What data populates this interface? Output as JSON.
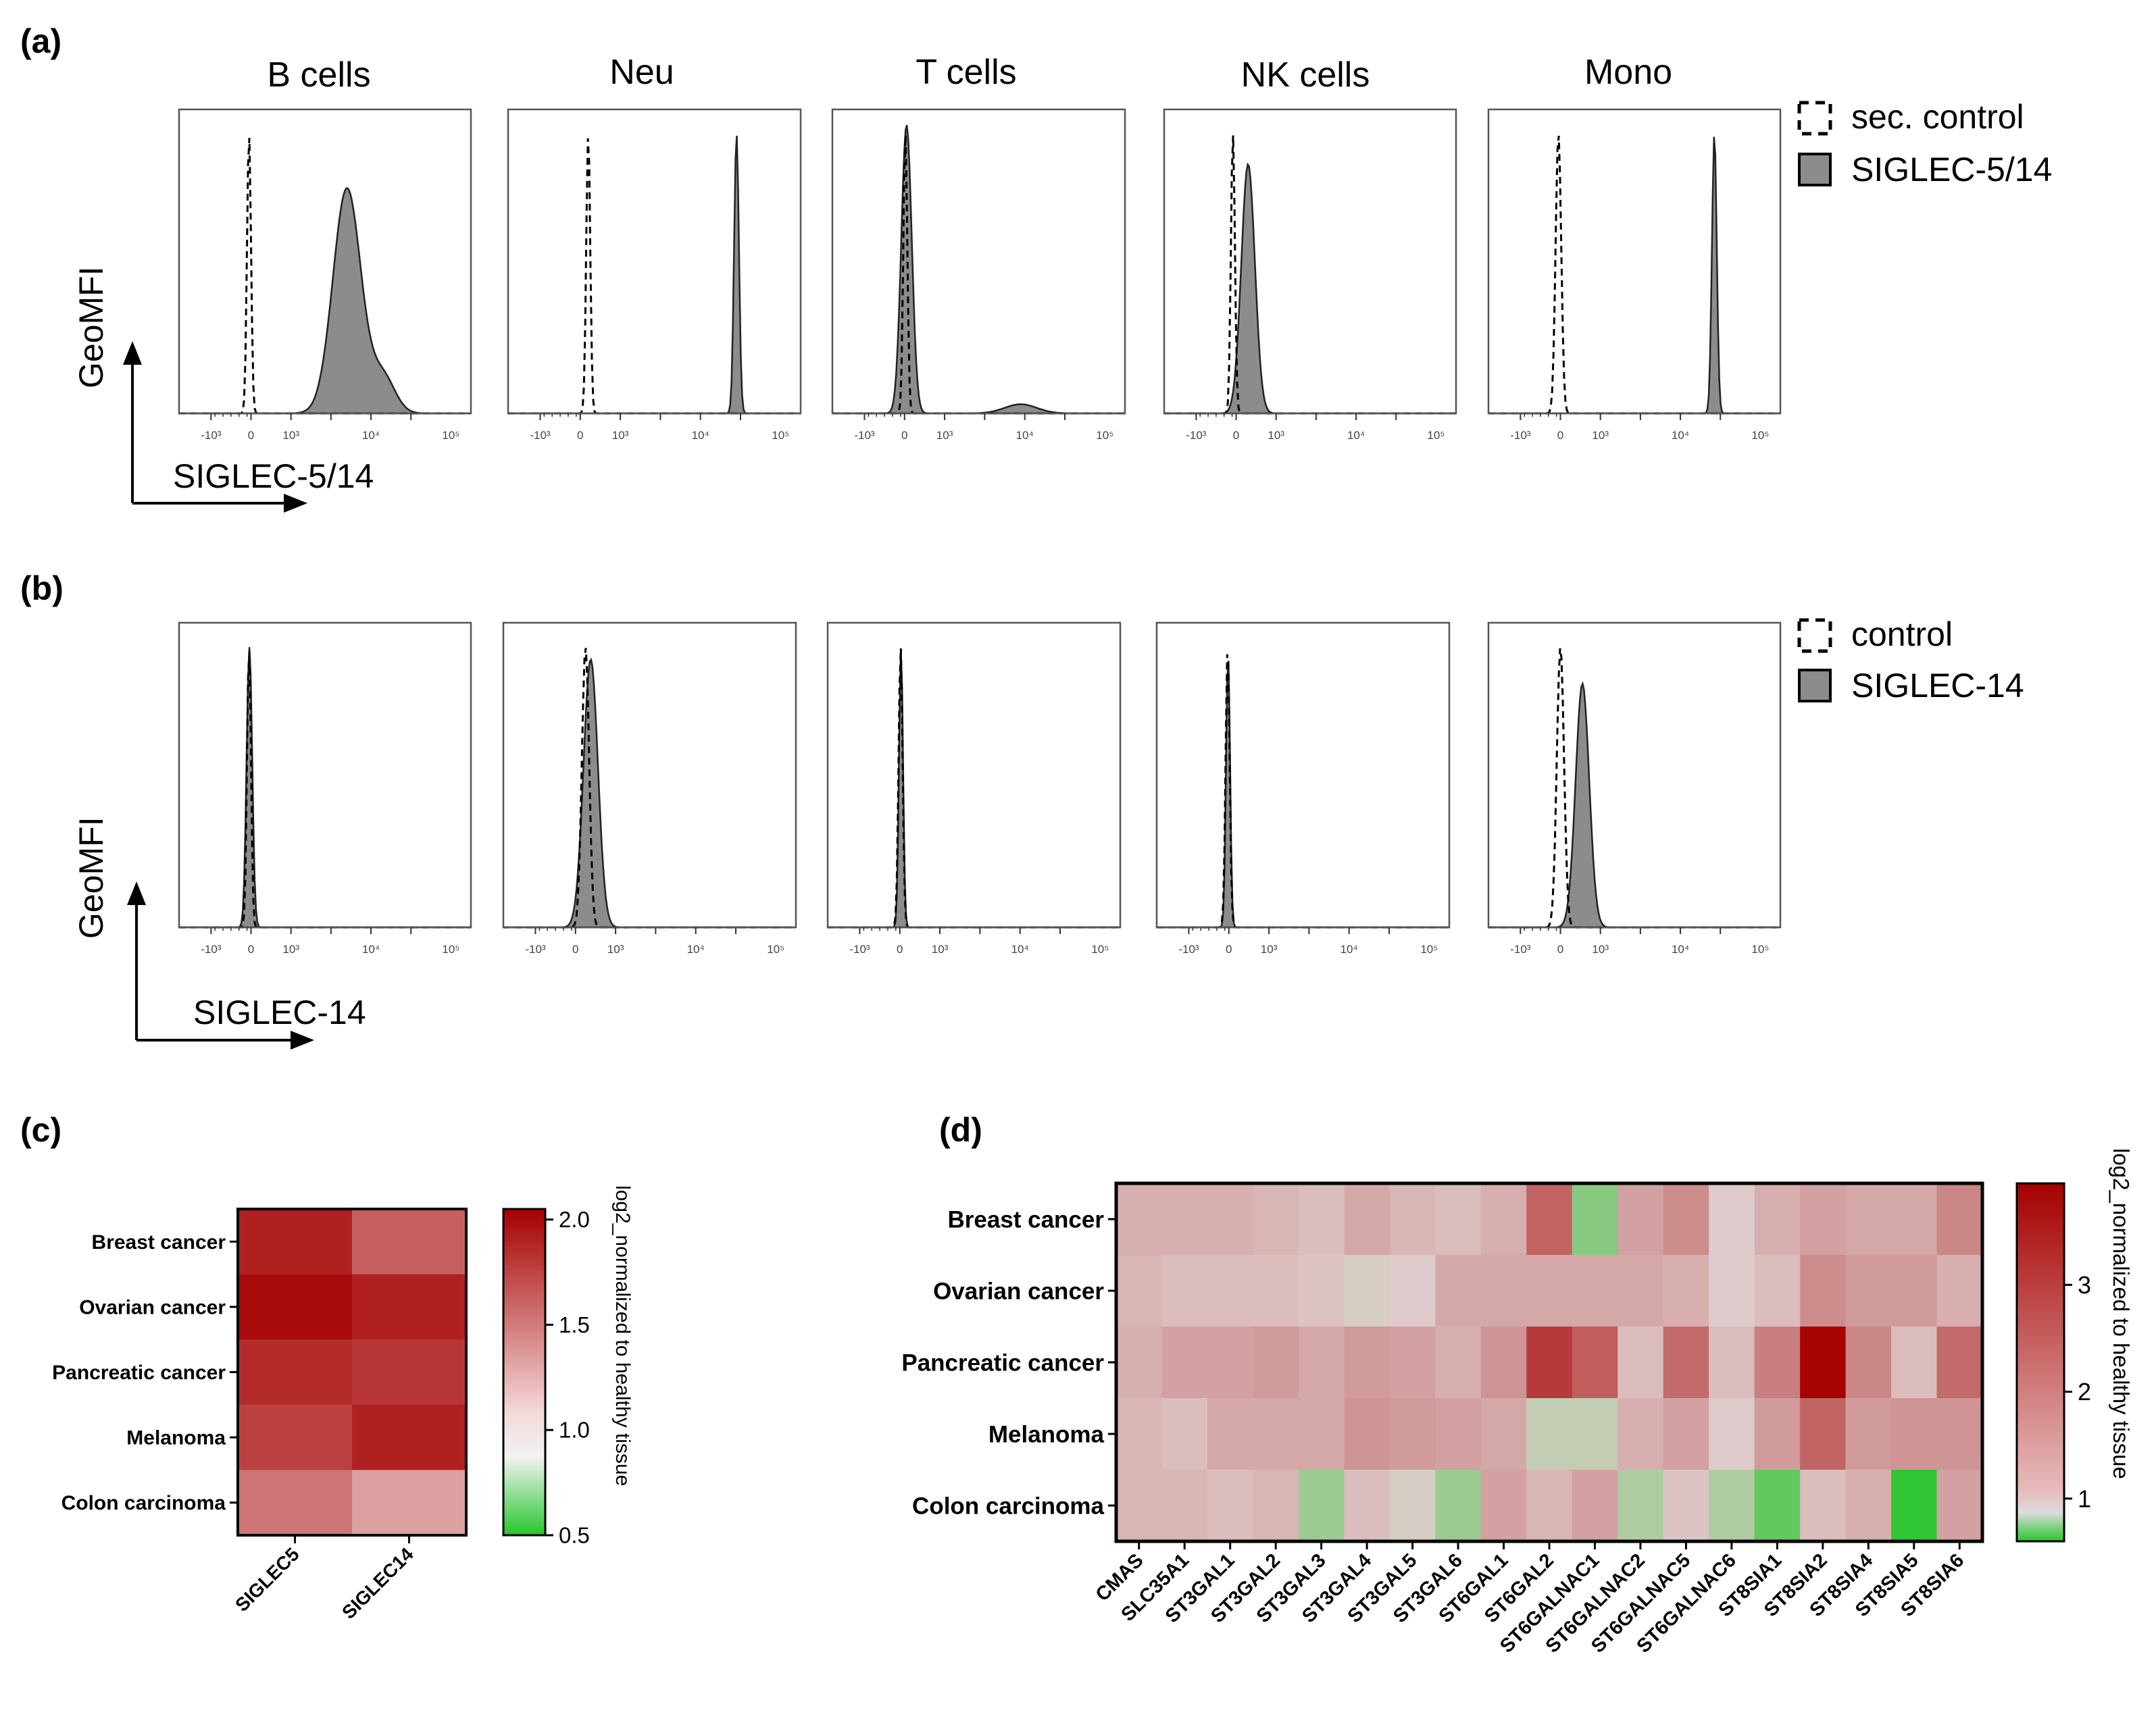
{
  "panels": {
    "a": {
      "letter": "(a)",
      "cells": [
        "B cells",
        "Neu",
        "T cells",
        "NK cells",
        "Mono"
      ],
      "ylabel": "GeoMFI",
      "xlabel": "SIGLEC-5/14",
      "legend": [
        "sec. control",
        "SIGLEC-5/14"
      ]
    },
    "b": {
      "letter": "(b)",
      "ylabel": "GeoMFI",
      "xlabel": "SIGLEC-14",
      "legend": [
        "control",
        "SIGLEC-14"
      ]
    },
    "c": {
      "letter": "(c)"
    },
    "d": {
      "letter": "(d)"
    }
  },
  "chart_data": [
    {
      "type": "histogram",
      "panel": "a",
      "x_scale": "biexponential",
      "xticks": [
        "-10³",
        "0",
        "10³",
        "10⁴",
        "10⁵"
      ],
      "series": [
        {
          "name": "sec. control",
          "style": "dashed",
          "fill": "none"
        },
        {
          "name": "SIGLEC-5/14",
          "style": "solid",
          "fill": "#8c8c8c"
        }
      ],
      "cells": [
        {
          "name": "B cells",
          "control_peak": -0.05,
          "sample": [
            {
              "peak": 2.4,
              "width": 0.35,
              "height": 0.74
            },
            {
              "peak": 3.3,
              "width": 0.3,
              "height": 0.12
            }
          ]
        },
        {
          "name": "Neu",
          "control_peak": 0.2,
          "sample": [
            {
              "peak": 3.9,
              "width": 0.06,
              "height": 0.92
            }
          ]
        },
        {
          "name": "T cells",
          "control_peak": 0.02,
          "sample": [
            {
              "peak": 0.05,
              "width": 0.13,
              "height": 0.95
            },
            {
              "peak": 2.9,
              "width": 0.4,
              "height": 0.03
            }
          ]
        },
        {
          "name": "NK cells",
          "control_peak": -0.08,
          "sample": [
            {
              "peak": 0.3,
              "width": 0.17,
              "height": 0.82
            }
          ]
        },
        {
          "name": "Mono",
          "control_peak": -0.05,
          "sample": [
            {
              "peak": 3.85,
              "width": 0.06,
              "height": 0.92
            }
          ]
        }
      ]
    },
    {
      "type": "histogram",
      "panel": "b",
      "x_scale": "biexponential",
      "xticks": [
        "-10³",
        "0",
        "10³",
        "10⁴",
        "10⁵"
      ],
      "series": [
        {
          "name": "control",
          "style": "dashed",
          "fill": "none"
        },
        {
          "name": "SIGLEC-14",
          "style": "solid",
          "fill": "#8c8c8c"
        }
      ],
      "cells": [
        {
          "name": "B cells",
          "control_peak": -0.05,
          "sample": [
            {
              "peak": -0.04,
              "width": 0.07,
              "height": 0.92
            }
          ]
        },
        {
          "name": "Neu",
          "control_peak": 0.25,
          "sample": [
            {
              "peak": 0.38,
              "width": 0.18,
              "height": 0.88
            }
          ]
        },
        {
          "name": "T cells",
          "control_peak": 0.02,
          "sample": [
            {
              "peak": 0.03,
              "width": 0.05,
              "height": 0.92
            }
          ]
        },
        {
          "name": "NK cells",
          "control_peak": -0.03,
          "sample": [
            {
              "peak": -0.02,
              "width": 0.05,
              "height": 0.9
            }
          ]
        },
        {
          "name": "Mono",
          "control_peak": 0.0,
          "sample": [
            {
              "peak": 0.55,
              "width": 0.17,
              "height": 0.8
            }
          ]
        }
      ]
    },
    {
      "type": "heatmap",
      "panel": "c",
      "rows": [
        "Breast cancer",
        "Ovarian cancer",
        "Pancreatic cancer",
        "Melanoma",
        "Colon carcinoma"
      ],
      "columns": [
        "SIGLEC5",
        "SIGLEC14"
      ],
      "values": [
        [
          1.9,
          1.6
        ],
        [
          2.0,
          1.9
        ],
        [
          1.85,
          1.8
        ],
        [
          1.75,
          1.9
        ],
        [
          1.5,
          1.3
        ]
      ],
      "colorbar": {
        "min": 0.5,
        "max": 2.05,
        "ticks": [
          "2.0",
          "1.5",
          "1.0",
          "0.5"
        ],
        "label": "log2_normalized to healthy tissue"
      }
    },
    {
      "type": "heatmap",
      "panel": "d",
      "rows": [
        "Breast cancer",
        "Ovarian cancer",
        "Pancreatic cancer",
        "Melanoma",
        "Colon carcinoma"
      ],
      "columns": [
        "CMAS",
        "SLC35A1",
        "ST3GAL1",
        "ST3GAL2",
        "ST3GAL3",
        "ST3GAL4",
        "ST3GAL5",
        "ST3GAL6",
        "ST6GAL1",
        "ST6GAL2",
        "ST6GALNAC1",
        "ST6GALNAC2",
        "ST6GALNAC5",
        "ST6GALNAC6",
        "ST8SIA1",
        "ST8SIA2",
        "ST8SIA4",
        "ST8SIA5",
        "ST8SIA6"
      ],
      "values": [
        [
          1.4,
          1.4,
          1.4,
          1.3,
          1.2,
          1.5,
          1.3,
          1.2,
          1.4,
          2.5,
          0.5,
          1.6,
          1.9,
          1.0,
          1.4,
          1.6,
          1.5,
          1.5,
          2.0
        ],
        [
          1.3,
          1.2,
          1.2,
          1.2,
          1.1,
          0.9,
          1.0,
          1.5,
          1.5,
          1.5,
          1.5,
          1.5,
          1.4,
          1.0,
          1.2,
          1.9,
          1.7,
          1.7,
          1.4
        ],
        [
          1.4,
          1.6,
          1.6,
          1.7,
          1.5,
          1.7,
          1.6,
          1.4,
          1.8,
          3.1,
          2.6,
          1.2,
          2.4,
          1.2,
          2.1,
          3.9,
          2.0,
          1.2,
          2.4
        ],
        [
          1.3,
          1.2,
          1.5,
          1.5,
          1.5,
          1.8,
          1.7,
          1.6,
          1.5,
          0.8,
          0.8,
          1.4,
          1.6,
          1.0,
          1.7,
          2.5,
          1.7,
          1.8,
          1.8
        ],
        [
          1.3,
          1.3,
          1.2,
          1.3,
          0.6,
          1.2,
          0.9,
          0.6,
          1.6,
          1.3,
          1.6,
          0.7,
          1.1,
          0.7,
          0.3,
          1.2,
          1.4,
          0.05,
          1.6
        ]
      ],
      "colorbar": {
        "min": 0.6,
        "max": 3.95,
        "ticks": [
          "3",
          "2",
          "1"
        ],
        "label": "log2_normalized to healthy tissue"
      }
    }
  ]
}
